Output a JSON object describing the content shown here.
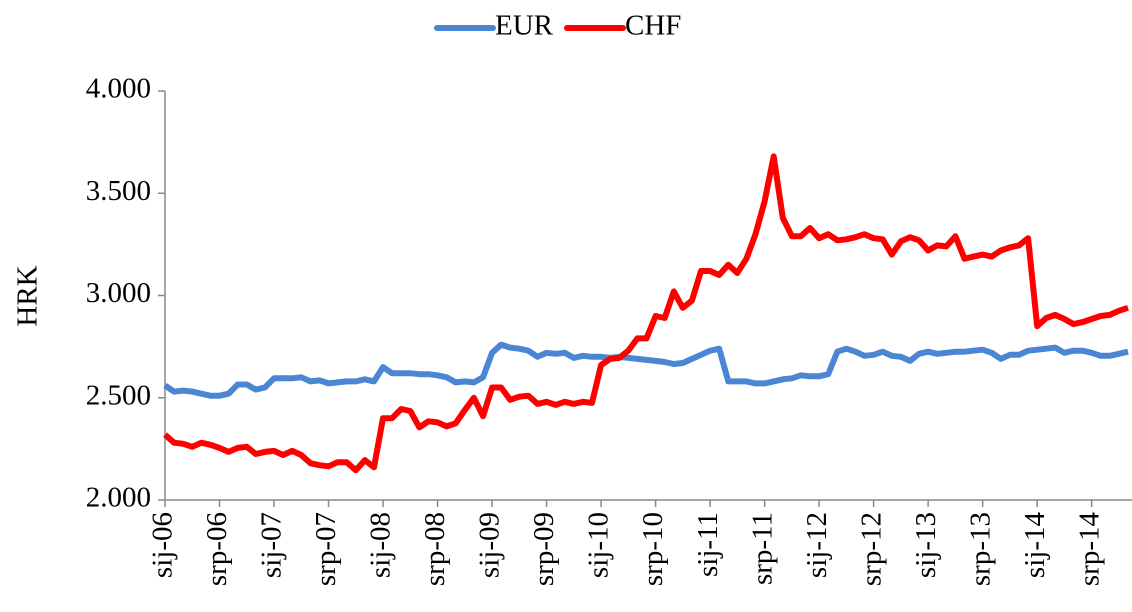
{
  "chart_data": {
    "type": "line",
    "y_label": "HRK",
    "categories": [
      "sij-06",
      null,
      null,
      null,
      null,
      null,
      "srp-06",
      null,
      null,
      null,
      null,
      null,
      "sij-07",
      null,
      null,
      null,
      null,
      null,
      "srp-07",
      null,
      null,
      null,
      null,
      null,
      "sij-08",
      null,
      null,
      null,
      null,
      null,
      "srp-08",
      null,
      null,
      null,
      null,
      null,
      "sij-09",
      null,
      null,
      null,
      null,
      null,
      "srp-09",
      null,
      null,
      null,
      null,
      null,
      "sij-10",
      null,
      null,
      null,
      null,
      null,
      "srp-10",
      null,
      null,
      null,
      null,
      null,
      "sij-11",
      null,
      null,
      null,
      null,
      null,
      "srp-11",
      null,
      null,
      null,
      null,
      null,
      "sij-12",
      null,
      null,
      null,
      null,
      null,
      "srp-12",
      null,
      null,
      null,
      null,
      null,
      "sij-13",
      null,
      null,
      null,
      null,
      null,
      "srp-13",
      null,
      null,
      null,
      null,
      null,
      "sij-14",
      null,
      null,
      null,
      null,
      null,
      "srp-14",
      null,
      null,
      null,
      null
    ],
    "series": [
      {
        "name": "EUR",
        "color": "#4a86d4",
        "values": [
          2.56,
          2.53,
          2.535,
          2.53,
          2.52,
          2.51,
          2.51,
          2.52,
          2.565,
          2.565,
          2.54,
          2.55,
          2.595,
          2.595,
          2.595,
          2.6,
          2.58,
          2.585,
          2.57,
          2.575,
          2.58,
          2.58,
          2.59,
          2.58,
          2.65,
          2.62,
          2.62,
          2.62,
          2.615,
          2.615,
          2.61,
          2.6,
          2.575,
          2.58,
          2.575,
          2.6,
          2.72,
          2.76,
          2.745,
          2.74,
          2.73,
          2.7,
          2.72,
          2.715,
          2.72,
          2.695,
          2.705,
          2.7,
          2.7,
          2.695,
          2.7,
          2.695,
          2.69,
          2.685,
          2.68,
          2.675,
          2.665,
          2.67,
          2.69,
          2.71,
          2.73,
          2.74,
          2.58,
          2.58,
          2.58,
          2.57,
          2.57,
          2.58,
          2.59,
          2.595,
          2.61,
          2.605,
          2.605,
          2.615,
          2.725,
          2.74,
          2.725,
          2.705,
          2.71,
          2.725,
          2.705,
          2.7,
          2.68,
          2.715,
          2.725,
          2.715,
          2.72,
          2.725,
          2.725,
          2.73,
          2.735,
          2.72,
          2.69,
          2.71,
          2.71,
          2.73,
          2.735,
          2.74,
          2.745,
          2.72,
          2.73,
          2.73,
          2.72,
          2.705,
          2.705,
          2.715,
          2.725
        ]
      },
      {
        "name": "CHF",
        "color": "#ff0000",
        "values": [
          2.32,
          2.28,
          2.275,
          2.26,
          2.28,
          2.27,
          2.255,
          2.235,
          2.255,
          2.26,
          2.225,
          2.235,
          2.24,
          2.22,
          2.24,
          2.22,
          2.18,
          2.17,
          2.165,
          2.185,
          2.185,
          2.145,
          2.195,
          2.16,
          2.4,
          2.4,
          2.445,
          2.435,
          2.355,
          2.385,
          2.38,
          2.36,
          2.375,
          2.44,
          2.5,
          2.41,
          2.55,
          2.55,
          2.49,
          2.505,
          2.51,
          2.47,
          2.48,
          2.465,
          2.48,
          2.47,
          2.48,
          2.475,
          2.66,
          2.69,
          2.695,
          2.73,
          2.79,
          2.79,
          2.9,
          2.89,
          3.02,
          2.94,
          2.975,
          3.12,
          3.12,
          3.1,
          3.15,
          3.11,
          3.18,
          3.3,
          3.46,
          3.68,
          3.38,
          3.29,
          3.29,
          3.33,
          3.28,
          3.3,
          3.27,
          3.275,
          3.285,
          3.3,
          3.28,
          3.275,
          3.2,
          3.265,
          3.285,
          3.27,
          3.22,
          3.245,
          3.24,
          3.29,
          3.18,
          3.19,
          3.2,
          3.19,
          3.22,
          3.235,
          3.245,
          3.28,
          2.85,
          2.89,
          2.905,
          2.885,
          2.86,
          2.87,
          2.885,
          2.9,
          2.905,
          2.925,
          2.94
        ]
      }
    ],
    "ylim": [
      2,
      4
    ],
    "yticks": [
      {
        "value": 2,
        "label": "2.000"
      },
      {
        "value": 2.5,
        "label": "2.500"
      },
      {
        "value": 3,
        "label": "3.000"
      },
      {
        "value": 3.5,
        "label": "3.500"
      },
      {
        "value": 4,
        "label": "4.000"
      }
    ],
    "legend": "top"
  }
}
